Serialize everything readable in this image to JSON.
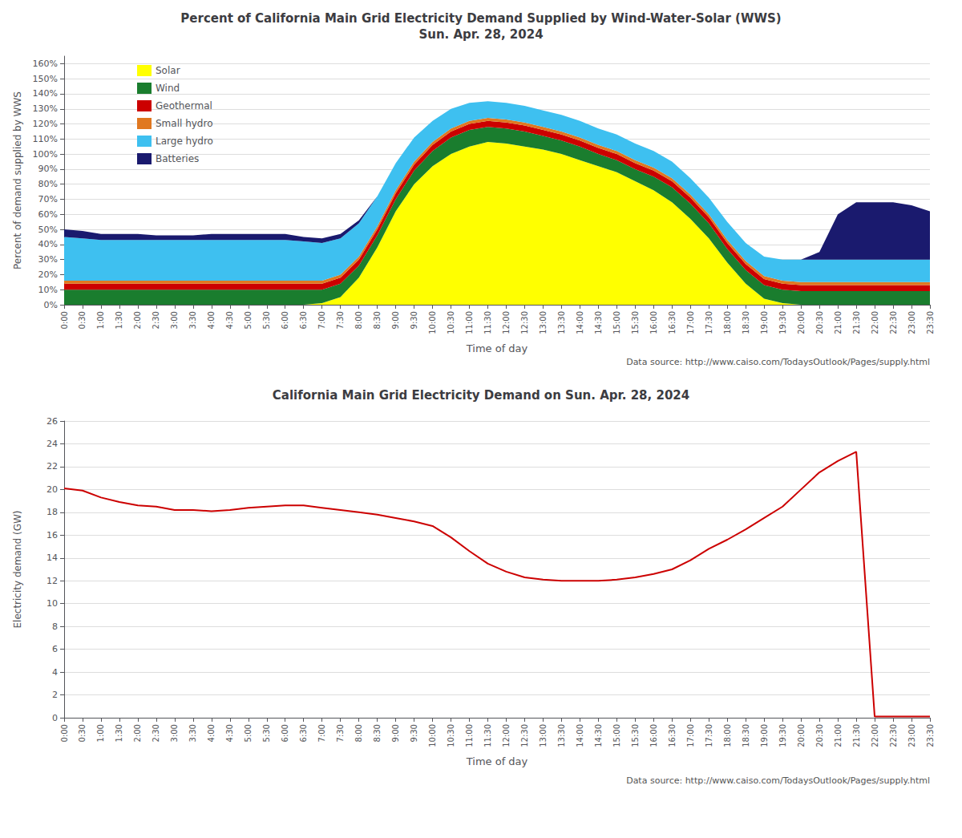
{
  "chart_data": [
    {
      "type": "area",
      "title": "Percent of California Main Grid Electricity Demand Supplied by Wind-Water-Solar (WWS)\nSun. Apr. 28, 2024",
      "xlabel": "Time of day",
      "ylabel": "Percent of demand supplied by WWS",
      "annotation": "Data source: http://www.caiso.com/TodaysOutlook/Pages/supply.html",
      "categories": [
        "0:00",
        "0:30",
        "1:00",
        "1:30",
        "2:00",
        "2:30",
        "3:00",
        "3:30",
        "4:00",
        "4:30",
        "5:00",
        "5:30",
        "6:00",
        "6:30",
        "7:00",
        "7:30",
        "8:00",
        "8:30",
        "9:00",
        "9:30",
        "10:00",
        "10:30",
        "11:00",
        "11:30",
        "12:00",
        "12:30",
        "13:00",
        "13:30",
        "14:00",
        "14:30",
        "15:00",
        "15:30",
        "16:00",
        "16:30",
        "17:00",
        "17:30",
        "18:00",
        "18:30",
        "19:00",
        "19:30",
        "20:00",
        "20:30",
        "21:00",
        "21:30",
        "22:00",
        "22:30",
        "23:00",
        "23:30"
      ],
      "series": [
        {
          "name": "Solar",
          "color": "#FFFF00",
          "values": [
            0,
            0,
            0,
            0,
            0,
            0,
            0,
            0,
            0,
            0,
            0,
            0,
            0,
            0,
            1,
            5,
            18,
            38,
            62,
            80,
            92,
            100,
            105,
            108,
            107,
            105,
            103,
            100,
            96,
            92,
            88,
            82,
            76,
            68,
            57,
            44,
            28,
            14,
            4,
            1,
            0,
            0,
            0,
            0,
            0,
            0,
            0,
            0
          ]
        },
        {
          "name": "Wind",
          "color": "#1a7d2e",
          "values": [
            10,
            10,
            10,
            10,
            10,
            10,
            10,
            10,
            10,
            10,
            10,
            10,
            10,
            10,
            9,
            9,
            8,
            8,
            8,
            9,
            10,
            11,
            11,
            10,
            10,
            10,
            9,
            9,
            9,
            8,
            8,
            8,
            9,
            10,
            10,
            10,
            9,
            9,
            9,
            9,
            9,
            9,
            9,
            9,
            9,
            9,
            9,
            9
          ]
        },
        {
          "name": "Geothermal",
          "color": "#cc0000",
          "values": [
            4,
            4,
            4,
            4,
            4,
            4,
            4,
            4,
            4,
            4,
            4,
            4,
            4,
            4,
            4,
            4,
            4,
            4,
            4,
            4,
            4,
            4,
            4,
            4,
            4,
            4,
            4,
            4,
            4,
            4,
            4,
            4,
            4,
            4,
            4,
            4,
            4,
            4,
            4,
            4,
            4,
            4,
            4,
            4,
            4,
            4,
            4,
            4
          ]
        },
        {
          "name": "Small hydro",
          "color": "#e07820",
          "values": [
            2,
            2,
            2,
            2,
            2,
            2,
            2,
            2,
            2,
            2,
            2,
            2,
            2,
            2,
            2,
            2,
            2,
            2,
            2,
            2,
            2,
            2,
            2,
            2,
            2,
            2,
            2,
            2,
            2,
            2,
            2,
            2,
            2,
            2,
            2,
            2,
            2,
            2,
            2,
            2,
            2,
            2,
            2,
            2,
            2,
            2,
            2,
            2
          ]
        },
        {
          "name": "Large hydro",
          "color": "#3ec0f0",
          "values": [
            29,
            28,
            27,
            27,
            27,
            27,
            27,
            27,
            27,
            27,
            27,
            27,
            27,
            26,
            25,
            24,
            22,
            20,
            18,
            16,
            14,
            13,
            12,
            11,
            11,
            11,
            11,
            11,
            11,
            11,
            11,
            11,
            11,
            11,
            11,
            11,
            12,
            12,
            13,
            14,
            15,
            15,
            15,
            15,
            15,
            15,
            15,
            15
          ]
        },
        {
          "name": "Batteries",
          "color": "#1a1a6e",
          "values": [
            5,
            5,
            4,
            4,
            4,
            3,
            3,
            3,
            4,
            4,
            4,
            4,
            4,
            3,
            3,
            3,
            2,
            0,
            0,
            0,
            0,
            0,
            0,
            0,
            0,
            0,
            0,
            0,
            0,
            0,
            0,
            0,
            0,
            0,
            0,
            0,
            0,
            0,
            0,
            0,
            0,
            5,
            30,
            38,
            38,
            38,
            36,
            32
          ]
        }
      ],
      "stacked": true,
      "ylim": [
        0,
        165
      ],
      "yticks": [
        {
          "value": 0,
          "label": "0%"
        },
        {
          "value": 10,
          "label": "10%"
        },
        {
          "value": 20,
          "label": "20%"
        },
        {
          "value": 30,
          "label": "30%"
        },
        {
          "value": 40,
          "label": "40%"
        },
        {
          "value": 50,
          "label": "50%"
        },
        {
          "value": 60,
          "label": "60%"
        },
        {
          "value": 70,
          "label": "70%"
        },
        {
          "value": 80,
          "label": "80%"
        },
        {
          "value": 90,
          "label": "90%"
        },
        {
          "value": 100,
          "label": "100%"
        },
        {
          "value": 110,
          "label": "110%"
        },
        {
          "value": 120,
          "label": "120%"
        },
        {
          "value": 130,
          "label": "130%"
        },
        {
          "value": 140,
          "label": "140%"
        },
        {
          "value": 150,
          "label": "150%"
        },
        {
          "value": 160,
          "label": "160%"
        }
      ],
      "grid": true,
      "legend": "upper left"
    },
    {
      "type": "line",
      "title": "California Main Grid Electricity Demand on Sun. Apr. 28, 2024",
      "xlabel": "Time of day",
      "ylabel": "Electricity demand (GW)",
      "annotation": "Data source: http://www.caiso.com/TodaysOutlook/Pages/supply.html",
      "categories": [
        "0:00",
        "0:30",
        "1:00",
        "1:30",
        "2:00",
        "2:30",
        "3:00",
        "3:30",
        "4:00",
        "4:30",
        "5:00",
        "5:30",
        "6:00",
        "6:30",
        "7:00",
        "7:30",
        "8:00",
        "8:30",
        "9:00",
        "9:30",
        "10:00",
        "10:30",
        "11:00",
        "11:30",
        "12:00",
        "12:30",
        "13:00",
        "13:30",
        "14:00",
        "14:30",
        "15:00",
        "15:30",
        "16:00",
        "16:30",
        "17:00",
        "17:30",
        "18:00",
        "18:30",
        "19:00",
        "19:30",
        "20:00",
        "20:30",
        "21:00",
        "21:30",
        "22:00",
        "22:30",
        "23:00",
        "23:30"
      ],
      "values": [
        20.1,
        19.9,
        19.3,
        18.9,
        18.6,
        18.5,
        18.2,
        18.2,
        18.1,
        18.2,
        18.4,
        18.5,
        18.6,
        18.6,
        18.4,
        18.2,
        18.0,
        17.8,
        17.5,
        17.2,
        16.8,
        15.8,
        14.6,
        13.5,
        12.8,
        12.3,
        12.1,
        12.0,
        12.0,
        12.0,
        12.1,
        12.3,
        12.6,
        13.0,
        13.8,
        14.8,
        15.6,
        16.5,
        17.5,
        18.5,
        20.0,
        21.5,
        22.5,
        23.3,
        0.1,
        0.1,
        0.1,
        0.1
      ],
      "color": "#cc0000",
      "ylim": [
        0,
        26
      ],
      "yticks": [
        0,
        2,
        4,
        6,
        8,
        10,
        12,
        14,
        16,
        18,
        20,
        22,
        24,
        26
      ],
      "grid": true
    }
  ]
}
